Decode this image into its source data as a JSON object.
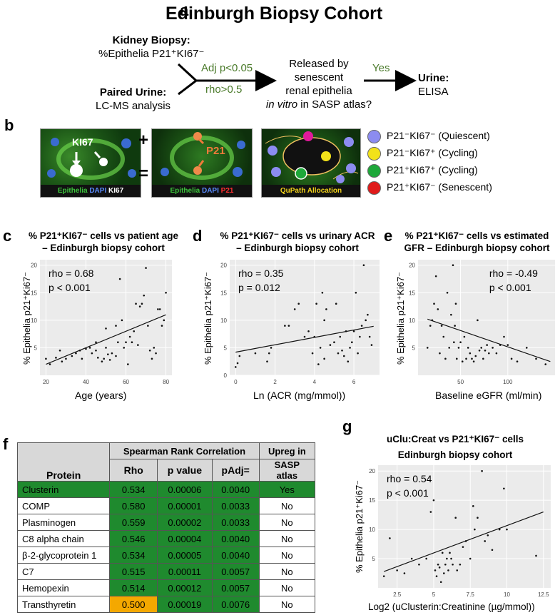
{
  "panel_a": {
    "label": "a",
    "title": "Edinburgh Biopsy Cohort",
    "biopsy_title": "Kidney Biopsy:",
    "biopsy_sub": "%Epithelia P21⁺KI67⁻",
    "urine_title": "Paired Urine:",
    "urine_sub": "LC-MS analysis",
    "cond1": "Adj p<0.05",
    "cond2": "rho>0.5",
    "question1": "Released by",
    "question2": "senescent",
    "question3": "renal epithelia",
    "question4_italic": "in vitro",
    "question4_rest": " in SASP atlas?",
    "yes": "Yes",
    "out_title": "Urine:",
    "out_sub": "ELISA"
  },
  "panel_b": {
    "label": "b",
    "tile1_caption": [
      "Epithelia",
      "DAPI",
      "KI67"
    ],
    "tile1_marker": "KI67",
    "tile2_caption": [
      "Epithelia",
      "DAPI",
      "P21"
    ],
    "tile2_marker": "P21",
    "tile3_caption": "QuPath Allocation",
    "plus": "+",
    "equals": "=",
    "legend": [
      {
        "text": "P21⁻KI67⁻ (Quiescent)",
        "color": "#8c8cf0"
      },
      {
        "text": "P21⁻KI67⁺ (Cycling)",
        "color": "#f2e21a"
      },
      {
        "text": "P21⁺KI67⁺ (Cycling)",
        "color": "#1ea83a"
      },
      {
        "text": "P21⁺KI67⁻ (Senescent)",
        "color": "#e01a1a"
      }
    ]
  },
  "panel_c": {
    "label": "c",
    "title1": "% P21⁺KI67⁻ cells vs patient age",
    "title2": "– Edinburgh biopsy  cohort",
    "rho": "rho = 0.68",
    "p": "p < 0.001",
    "xlabel": "Age (years)",
    "ylabel": "% Epithelia p21⁺Ki67⁻"
  },
  "panel_d": {
    "label": "d",
    "title1": "% P21⁺KI67⁻ cells vs urinary ACR",
    "title2": "– Edinburgh biopsy  cohort",
    "rho": "rho = 0.35",
    "p": "p = 0.012",
    "xlabel": "Ln (ACR (mg/mmol))",
    "ylabel": "% Epithelia p21⁺Ki67⁻"
  },
  "panel_e": {
    "label": "e",
    "title1": "% P21⁺KI67⁻ cells vs estimated",
    "title2": "GFR – Edinburgh biopsy  cohort",
    "rho": "rho = -0.49",
    "p": "p < 0.001",
    "xlabel": "Baseline eGFR (ml/min)",
    "ylabel": "% Epithelia p21⁺Ki67⁻"
  },
  "panel_g": {
    "label": "g",
    "title1": "uClu:Creat vs P21⁺KI67⁻ cells",
    "title2": "Edinburgh biopsy cohort",
    "rho": "rho = 0.54",
    "p": "p < 0.001",
    "xlabel": "Log2 (uClusterin:Creatinine (µg/mmol))",
    "ylabel": "% Epithelia p21⁺Ki67⁻"
  },
  "panel_f": {
    "label": "f",
    "header_group": "Spearman Rank Correlation",
    "header_upreg1": "Upreg in",
    "header_upreg2": "SASP atlas",
    "col_protein": "Protein",
    "col_rho": "Rho",
    "col_p": "p value",
    "col_padj": "pAdj=",
    "rows": [
      {
        "protein": "Clusterin",
        "rho": "0.534",
        "p": "0.00006",
        "padj": "0.0040",
        "upreg": "Yes"
      },
      {
        "protein": "COMP",
        "rho": "0.580",
        "p": "0.00001",
        "padj": "0.0033",
        "upreg": "No"
      },
      {
        "protein": "Plasminogen",
        "rho": "0.559",
        "p": "0.00002",
        "padj": "0.0033",
        "upreg": "No"
      },
      {
        "protein": "C8 alpha chain",
        "rho": "0.546",
        "p": "0.00004",
        "padj": "0.0040",
        "upreg": "No"
      },
      {
        "protein": "β-2-glycoprotein 1",
        "rho": "0.534",
        "p": "0.00005",
        "padj": "0.0040",
        "upreg": "No"
      },
      {
        "protein": "C7",
        "rho": "0.515",
        "p": "0.00011",
        "padj": "0.0057",
        "upreg": "No"
      },
      {
        "protein": "Hemopexin",
        "rho": "0.514",
        "p": "0.00012",
        "padj": "0.0057",
        "upreg": "No"
      },
      {
        "protein": "Transthyretin",
        "rho": "0.500",
        "p": "0.00019",
        "padj": "0.0076",
        "upreg": "No"
      }
    ]
  },
  "chart_data": [
    {
      "id": "c",
      "type": "scatter",
      "xlim": [
        17,
        83
      ],
      "ylim": [
        0,
        21
      ],
      "xticks": [
        20,
        40,
        60,
        80
      ],
      "yticks": [
        5,
        10,
        15,
        20
      ],
      "fit": [
        [
          20,
          2.0
        ],
        [
          80,
          11.0
        ]
      ],
      "points": [
        [
          20,
          3
        ],
        [
          22,
          2
        ],
        [
          25,
          3.2
        ],
        [
          27,
          4.5
        ],
        [
          28,
          2.5
        ],
        [
          30,
          3
        ],
        [
          33,
          3.5
        ],
        [
          35,
          4
        ],
        [
          37,
          4.5
        ],
        [
          38,
          3
        ],
        [
          40,
          4.8
        ],
        [
          42,
          5
        ],
        [
          43,
          4
        ],
        [
          45,
          4.5
        ],
        [
          46,
          3.2
        ],
        [
          48,
          2.5
        ],
        [
          49,
          3
        ],
        [
          50,
          5
        ],
        [
          51,
          3.8
        ],
        [
          52,
          2.8
        ],
        [
          53,
          4
        ],
        [
          55,
          3.5
        ],
        [
          56,
          6
        ],
        [
          57,
          17.5
        ],
        [
          58,
          10
        ],
        [
          59,
          5
        ],
        [
          60,
          6
        ],
        [
          61,
          2
        ],
        [
          62,
          7
        ],
        [
          63,
          6
        ],
        [
          64,
          8
        ],
        [
          65,
          13
        ],
        [
          66,
          5.5
        ],
        [
          67,
          12.5
        ],
        [
          68,
          13
        ],
        [
          69,
          14.5
        ],
        [
          70,
          19.5
        ],
        [
          71,
          9
        ],
        [
          72,
          4.5
        ],
        [
          73,
          3
        ],
        [
          74,
          5
        ],
        [
          75,
          4
        ],
        [
          76,
          12
        ],
        [
          77,
          12
        ],
        [
          78,
          9
        ],
        [
          79,
          10
        ],
        [
          80,
          15
        ],
        [
          50,
          8.5
        ],
        [
          45,
          6
        ],
        [
          55,
          9
        ]
      ]
    },
    {
      "id": "d",
      "type": "scatter",
      "xlim": [
        -0.3,
        7.3
      ],
      "ylim": [
        0,
        21
      ],
      "xticks": [
        0,
        2,
        4,
        6
      ],
      "yticks": [
        0,
        5,
        10,
        15,
        20
      ],
      "fit": [
        [
          0,
          4.2
        ],
        [
          7,
          8.9
        ]
      ],
      "points": [
        [
          0,
          1.5
        ],
        [
          0.1,
          2.2
        ],
        [
          0.2,
          3.5
        ],
        [
          1,
          4
        ],
        [
          1.6,
          2.5
        ],
        [
          1.7,
          4
        ],
        [
          1.8,
          5
        ],
        [
          2.5,
          9
        ],
        [
          2.7,
          9
        ],
        [
          3,
          12
        ],
        [
          3.2,
          13
        ],
        [
          3.5,
          7
        ],
        [
          3.7,
          8
        ],
        [
          3.9,
          4
        ],
        [
          4,
          7
        ],
        [
          4.1,
          13
        ],
        [
          4.2,
          2
        ],
        [
          4.3,
          5
        ],
        [
          4.4,
          15
        ],
        [
          4.5,
          3
        ],
        [
          4.6,
          12
        ],
        [
          4.8,
          5.5
        ],
        [
          5,
          6
        ],
        [
          5.1,
          13
        ],
        [
          5.2,
          4
        ],
        [
          5.3,
          7
        ],
        [
          5.4,
          4.5
        ],
        [
          5.5,
          3.5
        ],
        [
          5.6,
          8
        ],
        [
          5.7,
          2.5
        ],
        [
          5.8,
          5
        ],
        [
          5.9,
          6
        ],
        [
          6,
          8
        ],
        [
          6.1,
          15
        ],
        [
          6.2,
          4
        ],
        [
          6.3,
          7
        ],
        [
          6.4,
          9
        ],
        [
          6.5,
          20
        ],
        [
          6.6,
          10
        ],
        [
          6.7,
          11
        ],
        [
          6.8,
          7
        ],
        [
          6.9,
          5.5
        ],
        [
          4.5,
          10
        ]
      ]
    },
    {
      "id": "e",
      "type": "scatter",
      "xlim": [
        5,
        150
      ],
      "ylim": [
        0,
        21
      ],
      "xticks": [
        50,
        100
      ],
      "yticks": [
        5,
        10,
        15,
        20
      ],
      "fit": [
        [
          15,
          10.2
        ],
        [
          145,
          2.5
        ]
      ],
      "points": [
        [
          15,
          5
        ],
        [
          18,
          9
        ],
        [
          20,
          10
        ],
        [
          22,
          13
        ],
        [
          24,
          18
        ],
        [
          26,
          12
        ],
        [
          28,
          4
        ],
        [
          30,
          9
        ],
        [
          32,
          7
        ],
        [
          34,
          3
        ],
        [
          36,
          15
        ],
        [
          38,
          5
        ],
        [
          40,
          11
        ],
        [
          42,
          20
        ],
        [
          43,
          6
        ],
        [
          44,
          9
        ],
        [
          45,
          13
        ],
        [
          46,
          3
        ],
        [
          48,
          5
        ],
        [
          50,
          6
        ],
        [
          52,
          2.5
        ],
        [
          54,
          7
        ],
        [
          56,
          3
        ],
        [
          58,
          5
        ],
        [
          60,
          4
        ],
        [
          62,
          3
        ],
        [
          64,
          2.5
        ],
        [
          66,
          3.5
        ],
        [
          68,
          10
        ],
        [
          70,
          4.5
        ],
        [
          72,
          5
        ],
        [
          74,
          3
        ],
        [
          76,
          4.5
        ],
        [
          78,
          5.5
        ],
        [
          80,
          4
        ],
        [
          84,
          5
        ],
        [
          88,
          4
        ],
        [
          92,
          5.5
        ],
        [
          96,
          7
        ],
        [
          100,
          5.5
        ],
        [
          104,
          3
        ],
        [
          110,
          2.5
        ],
        [
          120,
          5
        ],
        [
          130,
          3
        ],
        [
          140,
          2
        ]
      ]
    },
    {
      "id": "g",
      "type": "scatter",
      "xlim": [
        1.2,
        13
      ],
      "ylim": [
        0,
        21
      ],
      "xticks": [
        2.5,
        5,
        7.5,
        10,
        12.5
      ],
      "yticks": [
        5,
        10,
        15,
        20
      ],
      "fit": [
        [
          1.6,
          2.8
        ],
        [
          12.5,
          13
        ]
      ],
      "points": [
        [
          1.6,
          2
        ],
        [
          2,
          8.5
        ],
        [
          2.5,
          3
        ],
        [
          3,
          2.5
        ],
        [
          3.5,
          5
        ],
        [
          4,
          4
        ],
        [
          4.5,
          5
        ],
        [
          4.8,
          13
        ],
        [
          5,
          15
        ],
        [
          5.1,
          3
        ],
        [
          5.2,
          2
        ],
        [
          5.3,
          4
        ],
        [
          5.4,
          3.5
        ],
        [
          5.5,
          1
        ],
        [
          5.6,
          6
        ],
        [
          5.7,
          2.5
        ],
        [
          5.8,
          4
        ],
        [
          5.9,
          5
        ],
        [
          6,
          3
        ],
        [
          6.1,
          6
        ],
        [
          6.2,
          5
        ],
        [
          6.3,
          4
        ],
        [
          6.5,
          12
        ],
        [
          6.6,
          3
        ],
        [
          6.8,
          4
        ],
        [
          7,
          7
        ],
        [
          7.2,
          8
        ],
        [
          7.5,
          5
        ],
        [
          7.7,
          14
        ],
        [
          7.8,
          10
        ],
        [
          8,
          12
        ],
        [
          8.3,
          20
        ],
        [
          8.5,
          8
        ],
        [
          8.7,
          9
        ],
        [
          9,
          6.5
        ],
        [
          9.5,
          10
        ],
        [
          9.8,
          17
        ],
        [
          10,
          10
        ],
        [
          12,
          5.5
        ]
      ]
    }
  ]
}
